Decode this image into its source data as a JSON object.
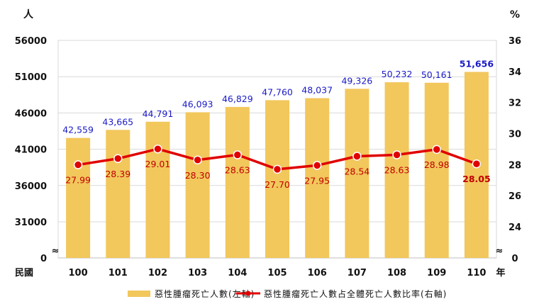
{
  "chart_data": {
    "type": "bar",
    "categories": [
      "100",
      "101",
      "102",
      "103",
      "104",
      "105",
      "106",
      "107",
      "108",
      "109",
      "110"
    ],
    "x_prefix": "民國",
    "x_suffix": "年",
    "series": [
      {
        "name": "惡性腫瘤死亡人數(左軸)",
        "type": "bar",
        "axis": "left",
        "color": "#f2c75c",
        "values": [
          42559,
          43665,
          44791,
          46093,
          46829,
          47760,
          48037,
          49326,
          50232,
          50161,
          51656
        ],
        "labels": [
          "42,559",
          "43,665",
          "44,791",
          "46,093",
          "46,829",
          "47,760",
          "48,037",
          "49,326",
          "50,232",
          "50,161",
          "51,656"
        ]
      },
      {
        "name": "惡性腫瘤死亡人數占全體死亡人數比率(右軸)",
        "type": "line",
        "axis": "right",
        "color": "#e00000",
        "values": [
          27.99,
          28.39,
          29.01,
          28.3,
          28.63,
          27.7,
          27.95,
          28.54,
          28.63,
          28.98,
          28.05
        ],
        "labels": [
          "27.99",
          "28.39",
          "29.01",
          "28.30",
          "28.63",
          "27.70",
          "27.95",
          "28.54",
          "28.63",
          "28.98",
          "28.05"
        ]
      }
    ],
    "left_axis": {
      "unit": "人",
      "ticks": [
        0,
        31000,
        36000,
        41000,
        46000,
        51000,
        56000
      ],
      "tick_labels": [
        "0",
        "31000",
        "36000",
        "41000",
        "46000",
        "51000",
        "56000"
      ],
      "axis_break": "≈"
    },
    "right_axis": {
      "unit": "%",
      "ticks": [
        0,
        24,
        26,
        28,
        30,
        32,
        34,
        36
      ],
      "tick_labels": [
        "0",
        "24",
        "26",
        "28",
        "30",
        "32",
        "34",
        "36"
      ],
      "axis_break": "≈"
    },
    "grid": true,
    "legend": "bottom",
    "colors": {
      "bar": "#f2c75c",
      "line": "#e00000",
      "bar_label": "#1a1ac8",
      "line_label": "#c00000",
      "grid": "#d9d9d9"
    }
  }
}
